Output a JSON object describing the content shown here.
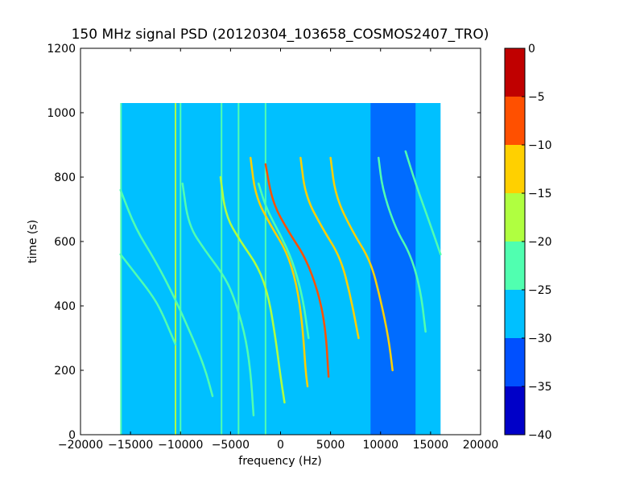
{
  "chart_data": {
    "type": "heatmap",
    "title": "150 MHz signal PSD (20120304_103658_COSMOS2407_TRO)",
    "xlabel": "frequency (Hz)",
    "ylabel": "time (s)",
    "xlim": [
      -20000,
      20000
    ],
    "ylim": [
      0,
      1200
    ],
    "xticks": [
      -20000,
      -15000,
      -10000,
      -5000,
      0,
      5000,
      10000,
      15000,
      20000
    ],
    "xtick_labels": [
      "−20000",
      "−15000",
      "−10000",
      "−5000",
      "0",
      "5000",
      "10000",
      "15000",
      "20000"
    ],
    "yticks": [
      0,
      200,
      400,
      600,
      800,
      1000,
      1200
    ],
    "ytick_labels": [
      "0",
      "200",
      "400",
      "600",
      "800",
      "1000",
      "1200"
    ],
    "data_extent": {
      "x": [
        -16000,
        16000
      ],
      "y": [
        0,
        1030
      ]
    },
    "background_level_db": -27.5,
    "noise_band_hz": [
      9000,
      13500
    ],
    "noise_band_level_db": -32.5,
    "colorbar": {
      "levels": [
        -40,
        -35,
        -30,
        -25,
        -20,
        -15,
        -10,
        -5,
        0
      ],
      "tick_labels": [
        "−40",
        "−35",
        "−30",
        "−25",
        "−20",
        "−15",
        "−10",
        "−5",
        "0"
      ],
      "colors": [
        "#0000c8",
        "#0050ff",
        "#00c0ff",
        "#50ffb0",
        "#b0ff40",
        "#ffd000",
        "#ff5000",
        "#c00000"
      ]
    },
    "vertical_lines": [
      {
        "x": -15950,
        "y": [
          0,
          1030
        ],
        "db": -22.5
      },
      {
        "x": -10500,
        "y": [
          0,
          1030
        ],
        "db": -17.5
      },
      {
        "x": -10000,
        "y": [
          0,
          1030
        ],
        "db": -22.5
      },
      {
        "x": -5900,
        "y": [
          0,
          1030
        ],
        "db": -22.5
      },
      {
        "x": -4200,
        "y": [
          0,
          1030
        ],
        "db": -22.5
      },
      {
        "x": -1500,
        "y": [
          0,
          1030
        ],
        "db": -22.5
      }
    ],
    "series": [
      {
        "db": -22.5,
        "points": [
          [
            -16000,
            760
          ],
          [
            -14500,
            640
          ],
          [
            -12500,
            540
          ],
          [
            -10500,
            420
          ],
          [
            -8500,
            280
          ],
          [
            -7500,
            200
          ],
          [
            -6800,
            120
          ]
        ]
      },
      {
        "db": -22.5,
        "points": [
          [
            -16000,
            560
          ],
          [
            -14500,
            500
          ],
          [
            -13000,
            440
          ],
          [
            -12000,
            390
          ],
          [
            -10500,
            280
          ]
        ]
      },
      {
        "db": -22.5,
        "points": [
          [
            -9800,
            780
          ],
          [
            -9200,
            650
          ],
          [
            -7500,
            570
          ],
          [
            -5800,
            500
          ],
          [
            -4800,
            440
          ],
          [
            -3600,
            320
          ],
          [
            -3000,
            200
          ],
          [
            -2700,
            60
          ]
        ]
      },
      {
        "db": -17.5,
        "points": [
          [
            -6000,
            800
          ],
          [
            -5500,
            680
          ],
          [
            -4000,
            600
          ],
          [
            -2200,
            520
          ],
          [
            -1200,
            430
          ],
          [
            -500,
            300
          ],
          [
            0,
            180
          ],
          [
            400,
            100
          ]
        ]
      },
      {
        "db": -12.5,
        "points": [
          [
            -3000,
            860
          ],
          [
            -2500,
            740
          ],
          [
            -1000,
            650
          ],
          [
            600,
            570
          ],
          [
            1600,
            470
          ],
          [
            2200,
            340
          ],
          [
            2500,
            200
          ],
          [
            2700,
            150
          ]
        ]
      },
      {
        "db": -7.5,
        "points": [
          [
            -1500,
            840
          ],
          [
            -800,
            720
          ],
          [
            800,
            630
          ],
          [
            2500,
            550
          ],
          [
            3800,
            440
          ],
          [
            4500,
            330
          ],
          [
            4800,
            180
          ]
        ]
      },
      {
        "db": -12.5,
        "points": [
          [
            2000,
            860
          ],
          [
            2500,
            740
          ],
          [
            4200,
            640
          ],
          [
            6000,
            550
          ],
          [
            7000,
            430
          ],
          [
            7800,
            300
          ]
        ]
      },
      {
        "db": -12.5,
        "points": [
          [
            5000,
            860
          ],
          [
            5500,
            740
          ],
          [
            7200,
            630
          ],
          [
            9000,
            540
          ],
          [
            10000,
            420
          ],
          [
            10800,
            300
          ],
          [
            11200,
            200
          ]
        ]
      },
      {
        "db": -22.5,
        "points": [
          [
            9800,
            860
          ],
          [
            10200,
            760
          ],
          [
            11500,
            640
          ],
          [
            13000,
            560
          ],
          [
            14000,
            450
          ],
          [
            14500,
            320
          ]
        ]
      },
      {
        "db": -22.5,
        "points": [
          [
            12500,
            880
          ],
          [
            13500,
            780
          ],
          [
            15000,
            650
          ],
          [
            16000,
            560
          ]
        ]
      },
      {
        "db": -22.5,
        "points": [
          [
            -2200,
            780
          ],
          [
            -1400,
            700
          ],
          [
            0,
            620
          ],
          [
            1200,
            540
          ],
          [
            2200,
            430
          ],
          [
            2800,
            300
          ]
        ]
      }
    ]
  }
}
